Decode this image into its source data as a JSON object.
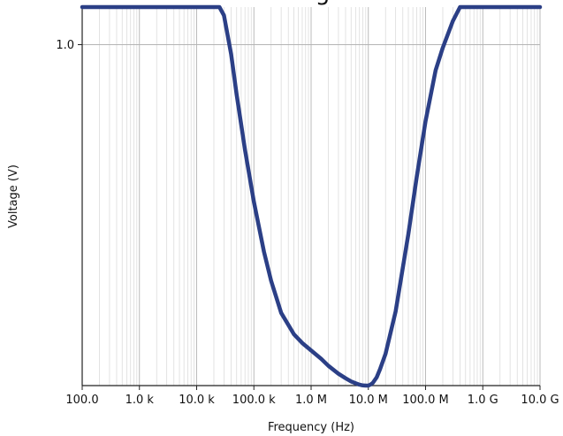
{
  "chart_data": {
    "type": "line",
    "title": "g",
    "xlabel": "Frequency (Hz)",
    "ylabel": "Voltage (V)",
    "x_scale": "log",
    "y_scale": "log",
    "xlim": [
      100,
      10000000000
    ],
    "ylim": [
      0.33,
      1.13
    ],
    "x_ticks": [
      {
        "value": 100,
        "label": "100.0"
      },
      {
        "value": 1000,
        "label": "1.0 k"
      },
      {
        "value": 10000,
        "label": "10.0 k"
      },
      {
        "value": 100000,
        "label": "100.0 k"
      },
      {
        "value": 1000000,
        "label": "1.0 M"
      },
      {
        "value": 10000000,
        "label": "10.0 M"
      },
      {
        "value": 100000000,
        "label": "100.0 M"
      },
      {
        "value": 1000000000,
        "label": "1.0 G"
      },
      {
        "value": 10000000000,
        "label": "10.0 G"
      }
    ],
    "y_ticks": [
      {
        "value": 1.0,
        "label": "1.0"
      }
    ],
    "grid": true,
    "series": [
      {
        "color": "#2b3f86",
        "x": [
          100,
          1000,
          10000,
          25000,
          30000,
          40000,
          50000,
          70000,
          100000,
          150000,
          200000,
          300000,
          500000,
          700000,
          1000000,
          1500000,
          2000000,
          3000000,
          4000000,
          5000000,
          6000000,
          7000000,
          8000000,
          9000000,
          10000000,
          11000000,
          12000000,
          14000000,
          16000000,
          20000000,
          30000000,
          50000000,
          70000000,
          100000000,
          150000000,
          200000000,
          300000000,
          400000000,
          1000000000,
          10000000000
        ],
        "y": [
          1.13,
          1.13,
          1.13,
          1.13,
          1.1,
          0.97,
          0.85,
          0.71,
          0.6,
          0.51,
          0.464,
          0.418,
          0.39,
          0.379,
          0.37,
          0.36,
          0.352,
          0.343,
          0.338,
          0.3345,
          0.3325,
          0.331,
          0.3302,
          0.33,
          0.33,
          0.3312,
          0.333,
          0.339,
          0.348,
          0.366,
          0.42,
          0.54,
          0.65,
          0.78,
          0.92,
          0.99,
          1.08,
          1.13,
          1.13,
          1.13
        ]
      }
    ]
  }
}
